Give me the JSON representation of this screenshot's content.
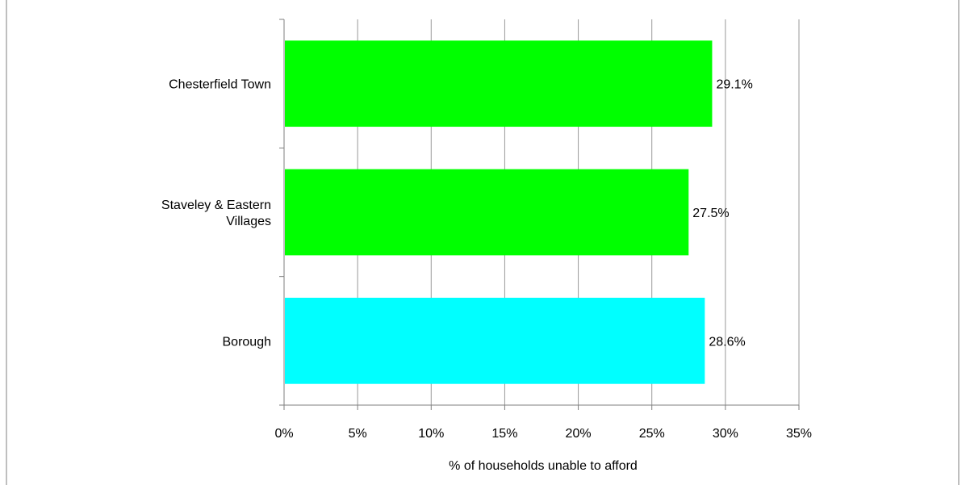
{
  "chart_data": {
    "type": "bar",
    "orientation": "horizontal",
    "categories": [
      [
        "Chesterfield Town"
      ],
      [
        "Staveley & Eastern",
        "Villages"
      ],
      [
        "Borough"
      ]
    ],
    "values": [
      29.1,
      27.5,
      28.6
    ],
    "value_labels": [
      "29.1%",
      "27.5%",
      "28.6%"
    ],
    "bar_colors": [
      "#00ff00",
      "#00ff00",
      "#00ffff"
    ],
    "xlabel": "% of households unable to afford",
    "ylabel": "",
    "title": "",
    "xlim": [
      0,
      35
    ],
    "xticks": [
      0,
      5,
      10,
      15,
      20,
      25,
      30,
      35
    ],
    "xtick_labels": [
      "0%",
      "5%",
      "10%",
      "15%",
      "20%",
      "25%",
      "30%",
      "35%"
    ],
    "grid": "vertical",
    "legend": "none",
    "gridline_color": "#999999",
    "axis_color": "#7f7f7f"
  }
}
